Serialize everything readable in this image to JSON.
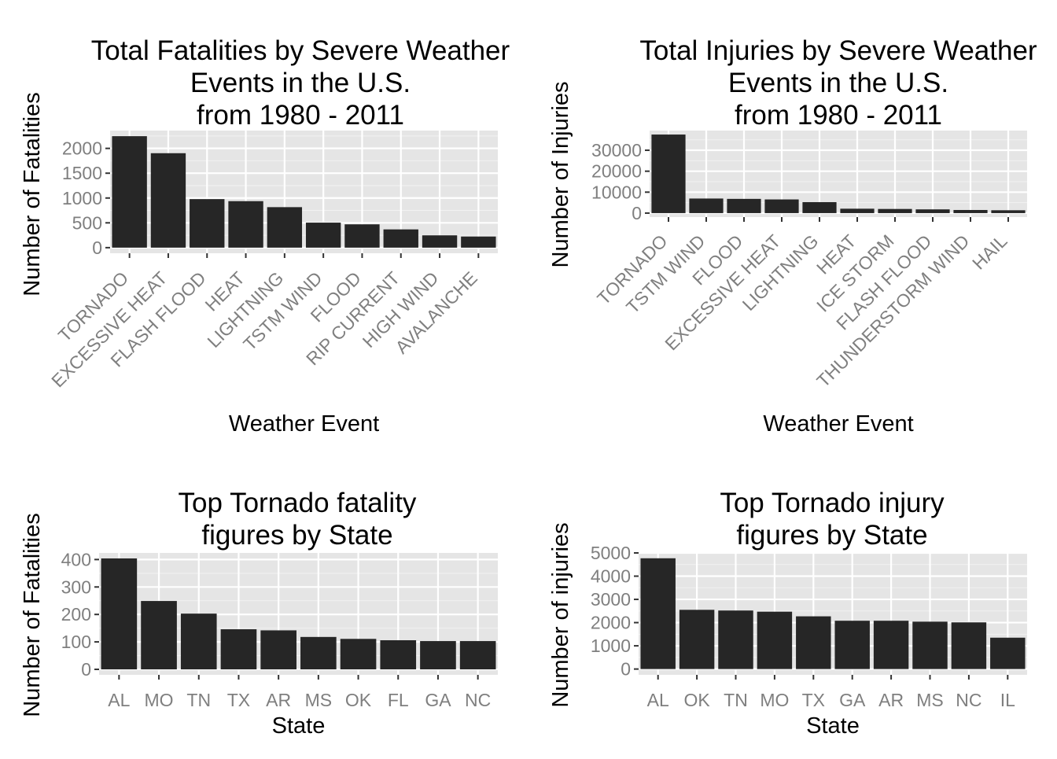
{
  "chart_data": [
    {
      "type": "bar",
      "title": [
        "Total Fatalities by Severe Weather",
        "Events in the U.S.",
        "from 1980 - 2011"
      ],
      "xlabel": "Weather Event",
      "ylabel": "Number of Fatalities",
      "categories": [
        "TORNADO",
        "EXCESSIVE HEAT",
        "FLASH FLOOD",
        "HEAT",
        "LIGHTNING",
        "TSTM WIND",
        "FLOOD",
        "RIP CURRENT",
        "HIGH WIND",
        "AVALANCHE"
      ],
      "values": [
        2246,
        1903,
        978,
        937,
        816,
        504,
        470,
        368,
        248,
        224
      ],
      "yticks": [
        0,
        500,
        1000,
        1500,
        2000
      ],
      "ylim": [
        -113,
        2359
      ],
      "rotate_labels": true,
      "grid": true
    },
    {
      "type": "bar",
      "title": [
        "Total Injuries by Severe Weather",
        "Events in the U.S.",
        "from 1980 - 2011"
      ],
      "xlabel": "Weather Event",
      "ylabel": "Number of Injuries",
      "categories": [
        "TORNADO",
        "TSTM WIND",
        "FLOOD",
        "EXCESSIVE HEAT",
        "LIGHTNING",
        "HEAT",
        "ICE STORM",
        "FLASH FLOOD",
        "THUNDERSTORM WIND",
        "HAIL"
      ],
      "values": [
        37500,
        6957,
        6789,
        6525,
        5230,
        2100,
        1975,
        1777,
        1488,
        1361
      ],
      "yticks": [
        0,
        10000,
        20000,
        30000
      ],
      "ylim": [
        -1900,
        39400
      ],
      "rotate_labels": true,
      "grid": true
    },
    {
      "type": "bar",
      "title": [
        "Top Tornado fatality",
        "figures by State"
      ],
      "xlabel": "State",
      "ylabel": "Number of Fatalities",
      "categories": [
        "AL",
        "MO",
        "TN",
        "TX",
        "AR",
        "MS",
        "OK",
        "FL",
        "GA",
        "NC"
      ],
      "values": [
        404,
        249,
        203,
        146,
        142,
        118,
        111,
        106,
        103,
        103
      ],
      "yticks": [
        0,
        100,
        200,
        300,
        400
      ],
      "ylim": [
        -20,
        424
      ],
      "rotate_labels": false,
      "grid": true
    },
    {
      "type": "bar",
      "title": [
        "Top Tornado injury",
        "figures by State"
      ],
      "xlabel": "State",
      "ylabel": "Number of injuries",
      "categories": [
        "AL",
        "OK",
        "TN",
        "MO",
        "TX",
        "GA",
        "AR",
        "MS",
        "NC",
        "IL"
      ],
      "values": [
        4770,
        2550,
        2520,
        2470,
        2270,
        2080,
        2080,
        2040,
        2010,
        1350
      ],
      "yticks": [
        0,
        1000,
        2000,
        3000,
        4000,
        5000
      ],
      "ylim": [
        -250,
        5000
      ],
      "rotate_labels": false,
      "grid": true
    }
  ]
}
